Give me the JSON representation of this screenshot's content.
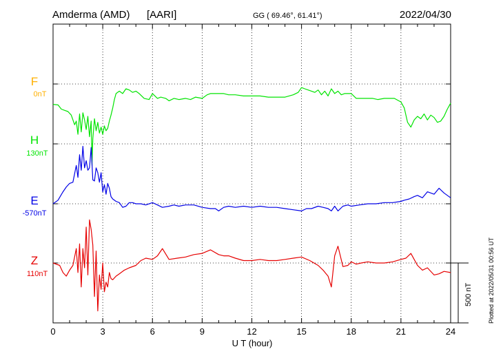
{
  "header": {
    "station": "Amderma (AMD)",
    "network": "[AARI]",
    "coords": "GG ( 69.46°,  61.41°)",
    "date": "2022/04/30"
  },
  "axes": {
    "xlabel": "U T (hour)",
    "scale_bar_label": "500 nT"
  },
  "plotted_note": "Plotted at 2022/05/31 00:56 UT",
  "colors": {
    "F": "#ffb000",
    "H": "#00e400",
    "E": "#0000e6",
    "Z": "#e60000",
    "grid": "#000000"
  },
  "chart_data": {
    "type": "line",
    "x_range": [
      0,
      24
    ],
    "xticks": [
      0,
      3,
      6,
      9,
      12,
      15,
      18,
      21,
      24
    ],
    "xtick_labels": [
      "0",
      "3",
      "6",
      "9",
      "12",
      "15",
      "18",
      "21",
      "24"
    ],
    "grid": true,
    "units": "nT",
    "scale_bar_nT": 500,
    "series": [
      {
        "name": "F",
        "baseline_label": "0nT",
        "color": "#ffb000",
        "x": [],
        "y": []
      },
      {
        "name": "H",
        "baseline_label": "130nT",
        "color": "#00e400",
        "x": [
          0,
          0.3,
          0.5,
          0.7,
          0.9,
          1.1,
          1.3,
          1.4,
          1.5,
          1.6,
          1.7,
          1.8,
          1.9,
          2.0,
          2.1,
          2.2,
          2.3,
          2.35,
          2.4,
          2.5,
          2.6,
          2.7,
          2.8,
          2.9,
          3.0,
          3.1,
          3.2,
          3.3,
          3.4,
          3.5,
          3.6,
          3.7,
          3.8,
          4.0,
          4.2,
          4.4,
          4.6,
          4.8,
          5.0,
          5.2,
          5.5,
          5.8,
          6.0,
          6.3,
          6.5,
          6.8,
          7.0,
          7.3,
          7.6,
          8.0,
          8.3,
          8.6,
          9.0,
          9.3,
          9.5,
          9.8,
          10.0,
          10.3,
          10.6,
          11.0,
          11.5,
          12.0,
          12.5,
          13.0,
          13.5,
          14.0,
          14.5,
          14.8,
          15.0,
          15.2,
          15.4,
          15.6,
          15.8,
          16.0,
          16.2,
          16.4,
          16.6,
          16.8,
          17.0,
          17.2,
          17.4,
          17.6,
          17.8,
          18.0,
          18.3,
          18.6,
          19.0,
          19.3,
          19.6,
          20.0,
          20.3,
          20.6,
          21.0,
          21.2,
          21.4,
          21.6,
          21.8,
          22.0,
          22.2,
          22.4,
          22.6,
          22.8,
          23.0,
          23.2,
          23.4,
          23.6,
          23.8,
          24.0
        ],
        "y": [
          330,
          325,
          290,
          280,
          270,
          240,
          160,
          190,
          80,
          250,
          100,
          260,
          200,
          120,
          230,
          60,
          190,
          -180,
          40,
          210,
          110,
          180,
          90,
          140,
          80,
          150,
          110,
          130,
          190,
          240,
          300,
          370,
          420,
          440,
          420,
          460,
          450,
          430,
          440,
          420,
          380,
          370,
          420,
          380,
          390,
          380,
          360,
          380,
          370,
          380,
          370,
          390,
          380,
          410,
          420,
          420,
          420,
          420,
          410,
          410,
          400,
          400,
          400,
          390,
          390,
          390,
          410,
          430,
          470,
          460,
          450,
          440,
          430,
          450,
          410,
          440,
          400,
          460,
          420,
          440,
          410,
          420,
          420,
          420,
          380,
          380,
          380,
          380,
          370,
          380,
          380,
          380,
          350,
          300,
          180,
          140,
          200,
          230,
          210,
          250,
          200,
          240,
          220,
          180,
          190,
          230,
          290,
          340
        ]
      },
      {
        "name": "E",
        "baseline_label": "-570nT",
        "color": "#0000e6",
        "x": [
          0,
          0.3,
          0.6,
          0.8,
          1.0,
          1.2,
          1.4,
          1.5,
          1.6,
          1.7,
          1.8,
          1.9,
          2.0,
          2.1,
          2.2,
          2.3,
          2.4,
          2.5,
          2.6,
          2.7,
          2.8,
          2.9,
          3.0,
          3.1,
          3.2,
          3.3,
          3.4,
          3.5,
          3.6,
          3.8,
          4.0,
          4.2,
          4.4,
          4.6,
          4.8,
          5.0,
          5.3,
          5.6,
          6.0,
          6.3,
          6.6,
          7.0,
          7.3,
          7.6,
          8.0,
          8.5,
          9.0,
          9.5,
          9.8,
          10.0,
          10.3,
          10.6,
          11.0,
          11.5,
          12.0,
          12.5,
          13.0,
          13.5,
          14.0,
          14.5,
          15.0,
          15.3,
          15.6,
          16.0,
          16.3,
          16.6,
          16.8,
          17.0,
          17.2,
          17.5,
          17.8,
          18.0,
          18.5,
          19.0,
          19.5,
          20.0,
          20.5,
          21.0,
          21.2,
          21.5,
          21.8,
          22.0,
          22.3,
          22.6,
          23.0,
          23.3,
          23.6,
          24.0
        ],
        "y": [
          0,
          30,
          100,
          140,
          170,
          180,
          320,
          220,
          410,
          280,
          480,
          300,
          360,
          280,
          300,
          470,
          200,
          190,
          300,
          260,
          180,
          260,
          100,
          160,
          80,
          170,
          130,
          60,
          40,
          20,
          10,
          -30,
          -20,
          10,
          10,
          0,
          0,
          -10,
          10,
          -10,
          -30,
          -20,
          -10,
          -20,
          -10,
          -10,
          -30,
          -40,
          -40,
          -60,
          -30,
          -20,
          -30,
          -20,
          -30,
          -20,
          -30,
          -30,
          -40,
          -50,
          -60,
          -40,
          -40,
          -20,
          -30,
          -40,
          -60,
          -20,
          -60,
          -20,
          -10,
          -20,
          -10,
          0,
          0,
          10,
          10,
          20,
          30,
          40,
          60,
          70,
          50,
          100,
          80,
          130,
          90,
          50
        ]
      },
      {
        "name": "Z",
        "baseline_label": "110nT",
        "color": "#e60000",
        "x": [
          0,
          0.4,
          0.6,
          0.8,
          1.0,
          1.2,
          1.4,
          1.5,
          1.6,
          1.7,
          1.8,
          1.9,
          2.0,
          2.1,
          2.2,
          2.3,
          2.4,
          2.5,
          2.6,
          2.7,
          2.8,
          2.9,
          3.0,
          3.1,
          3.2,
          3.3,
          3.4,
          3.5,
          3.6,
          3.8,
          4.0,
          4.3,
          4.6,
          5.0,
          5.3,
          5.6,
          6.0,
          6.3,
          6.6,
          7.0,
          7.5,
          8.0,
          8.5,
          9.0,
          9.5,
          10.0,
          10.3,
          10.6,
          11.0,
          11.5,
          12.0,
          12.5,
          13.0,
          13.5,
          14.0,
          14.5,
          15.0,
          15.5,
          16.0,
          16.3,
          16.6,
          16.8,
          17.0,
          17.2,
          17.5,
          17.8,
          18.0,
          18.3,
          18.6,
          19.0,
          19.5,
          20.0,
          20.5,
          21.0,
          21.3,
          21.6,
          21.8,
          22.0,
          22.3,
          22.6,
          23.0,
          23.3,
          23.6,
          24.0
        ],
        "y": [
          0,
          -20,
          -80,
          -110,
          -60,
          -20,
          120,
          -80,
          160,
          -200,
          120,
          -40,
          300,
          -100,
          360,
          280,
          150,
          -280,
          100,
          -400,
          -100,
          -220,
          0,
          -240,
          -160,
          -200,
          -80,
          -130,
          -140,
          -110,
          -90,
          -60,
          -40,
          -20,
          20,
          40,
          30,
          60,
          120,
          30,
          40,
          50,
          70,
          80,
          110,
          70,
          60,
          60,
          40,
          20,
          20,
          30,
          20,
          20,
          30,
          40,
          50,
          20,
          -20,
          -60,
          -110,
          -200,
          60,
          140,
          -30,
          -20,
          10,
          -10,
          0,
          10,
          0,
          0,
          10,
          30,
          40,
          80,
          30,
          -20,
          -60,
          -40,
          -100,
          -90,
          -70,
          -80
        ]
      }
    ]
  }
}
